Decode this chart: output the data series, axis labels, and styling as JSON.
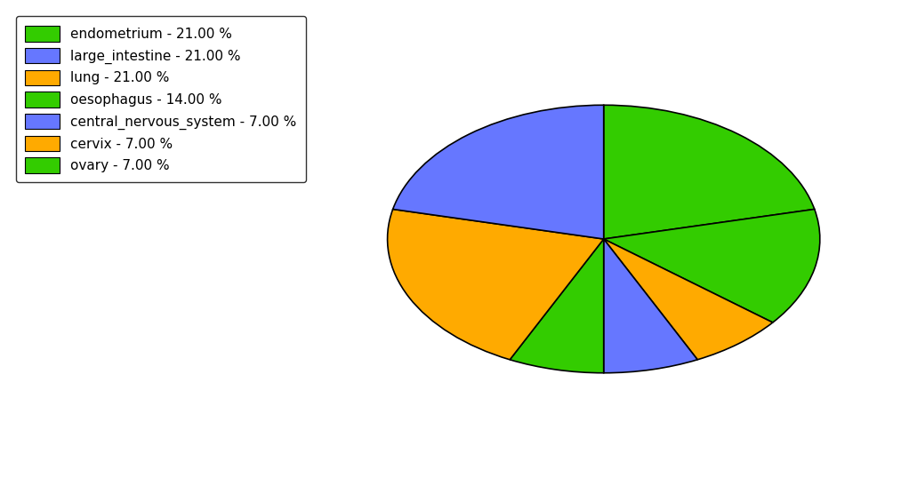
{
  "labels": [
    "endometrium",
    "oesophagus",
    "cervix",
    "central_nervous_system",
    "ovary",
    "lung",
    "large_intestine"
  ],
  "values": [
    21,
    14,
    7,
    7,
    7,
    21,
    21
  ],
  "colors": [
    "#33cc00",
    "#33cc00",
    "#ffaa00",
    "#6677ff",
    "#33cc00",
    "#ffaa00",
    "#6677ff"
  ],
  "legend_labels": [
    "endometrium - 21.00 %",
    "large_intestine - 21.00 %",
    "lung - 21.00 %",
    "oesophagus - 14.00 %",
    "central_nervous_system - 7.00 %",
    "cervix - 7.00 %",
    "ovary - 7.00 %"
  ],
  "legend_colors": [
    "#33cc00",
    "#6677ff",
    "#ffaa00",
    "#33cc00",
    "#6677ff",
    "#ffaa00",
    "#33cc00"
  ],
  "startangle": 90,
  "counterclock": false,
  "background_color": "#ffffff"
}
